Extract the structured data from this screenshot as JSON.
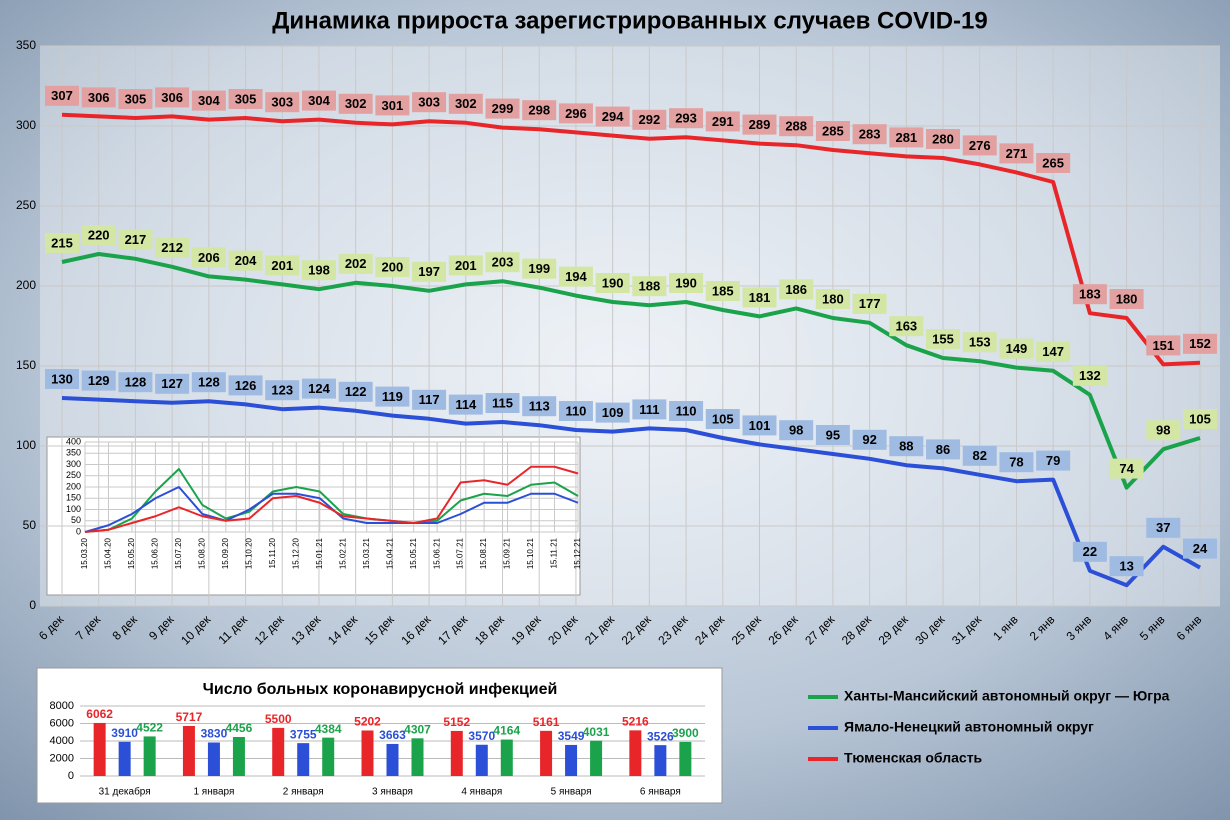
{
  "chart_data": [
    {
      "type": "line",
      "title": "Динамика прироста зарегистрированных случаев COVID-19",
      "categories": [
        "6 дек",
        "7 дек",
        "8 дек",
        "9 дек",
        "10 дек",
        "11 дек",
        "12 дек",
        "13 дек",
        "14 дек",
        "15 дек",
        "16 дек",
        "17 дек",
        "18 дек",
        "19 дек",
        "20 дек",
        "21 дек",
        "22 дек",
        "23 дек",
        "24 дек",
        "25 дек",
        "26 дек",
        "27 дек",
        "28 дек",
        "29 дек",
        "30 дек",
        "31 дек",
        "1 янв",
        "2 янв",
        "3 янв",
        "4 янв",
        "5 янв",
        "6 янв"
      ],
      "series": [
        {
          "name": "Ханты-Мансийский автономный округ — Югра",
          "color": "#1aa34a",
          "values": [
            215,
            220,
            217,
            212,
            206,
            204,
            201,
            198,
            202,
            200,
            197,
            201,
            203,
            199,
            194,
            190,
            188,
            190,
            185,
            181,
            186,
            180,
            177,
            163,
            155,
            153,
            149,
            147,
            132,
            74,
            98,
            105
          ]
        },
        {
          "name": "Ямало-Ненецкий автономный округ",
          "color": "#2b4fd6",
          "values": [
            130,
            129,
            128,
            127,
            128,
            126,
            123,
            124,
            122,
            119,
            117,
            114,
            115,
            113,
            110,
            109,
            111,
            110,
            105,
            101,
            98,
            95,
            92,
            88,
            86,
            82,
            78,
            79,
            22,
            13,
            37,
            24
          ]
        },
        {
          "name": "Тюменская область",
          "color": "#e8262a",
          "values": [
            307,
            306,
            305,
            306,
            304,
            305,
            303,
            304,
            302,
            301,
            303,
            302,
            299,
            298,
            296,
            294,
            292,
            293,
            291,
            289,
            288,
            285,
            283,
            281,
            280,
            276,
            271,
            265,
            183,
            180,
            151,
            152
          ]
        }
      ],
      "ylim": [
        0,
        350
      ],
      "yticks": [
        0,
        50,
        100,
        150,
        200,
        250,
        300,
        350
      ],
      "grid": true
    },
    {
      "type": "line",
      "categories": [
        "15.03.20",
        "15.04.20",
        "15.05.20",
        "15.06.20",
        "15.07.20",
        "15.08.20",
        "15.09.20",
        "15.10.20",
        "15.11.20",
        "15.12.20",
        "15.01.21",
        "15.02.21",
        "15.03.21",
        "15.04.21",
        "15.05.21",
        "15.06.21",
        "15.07.21",
        "15.08.21",
        "15.09.21",
        "15.10.21",
        "15.11.21",
        "15.12.21"
      ],
      "series": [
        {
          "color": "#1aa34a",
          "values": [
            0,
            10,
            60,
            180,
            280,
            120,
            60,
            90,
            180,
            200,
            180,
            80,
            60,
            50,
            40,
            50,
            140,
            170,
            160,
            210,
            220,
            160
          ]
        },
        {
          "color": "#2b4fd6",
          "values": [
            0,
            30,
            80,
            150,
            200,
            80,
            50,
            100,
            170,
            170,
            150,
            60,
            40,
            40,
            40,
            40,
            80,
            130,
            130,
            170,
            170,
            130
          ]
        },
        {
          "color": "#e8262a",
          "values": [
            0,
            10,
            40,
            70,
            110,
            70,
            50,
            60,
            150,
            160,
            130,
            70,
            60,
            50,
            40,
            60,
            220,
            230,
            210,
            290,
            290,
            260
          ]
        }
      ],
      "ylim": [
        0,
        400
      ],
      "yticks": [
        0,
        50,
        100,
        150,
        200,
        250,
        300,
        350,
        400
      ],
      "grid": true
    },
    {
      "type": "bar",
      "title": "Число больных коронавирусной инфекцией",
      "categories": [
        "31 декабря",
        "1 января",
        "2 января",
        "3 января",
        "4 января",
        "5 января",
        "6 января"
      ],
      "series": [
        {
          "color": "#e8262a",
          "values": [
            6062,
            5717,
            5500,
            5202,
            5152,
            5161,
            5216
          ]
        },
        {
          "color": "#2b4fd6",
          "values": [
            3910,
            3830,
            3755,
            3663,
            3570,
            3549,
            3526
          ]
        },
        {
          "color": "#1aa34a",
          "values": [
            4522,
            4456,
            4384,
            4307,
            4164,
            4031,
            3900
          ]
        }
      ],
      "ylim": [
        0,
        8000
      ],
      "yticks": [
        0,
        2000,
        4000,
        6000,
        8000
      ],
      "grid": true
    }
  ]
}
